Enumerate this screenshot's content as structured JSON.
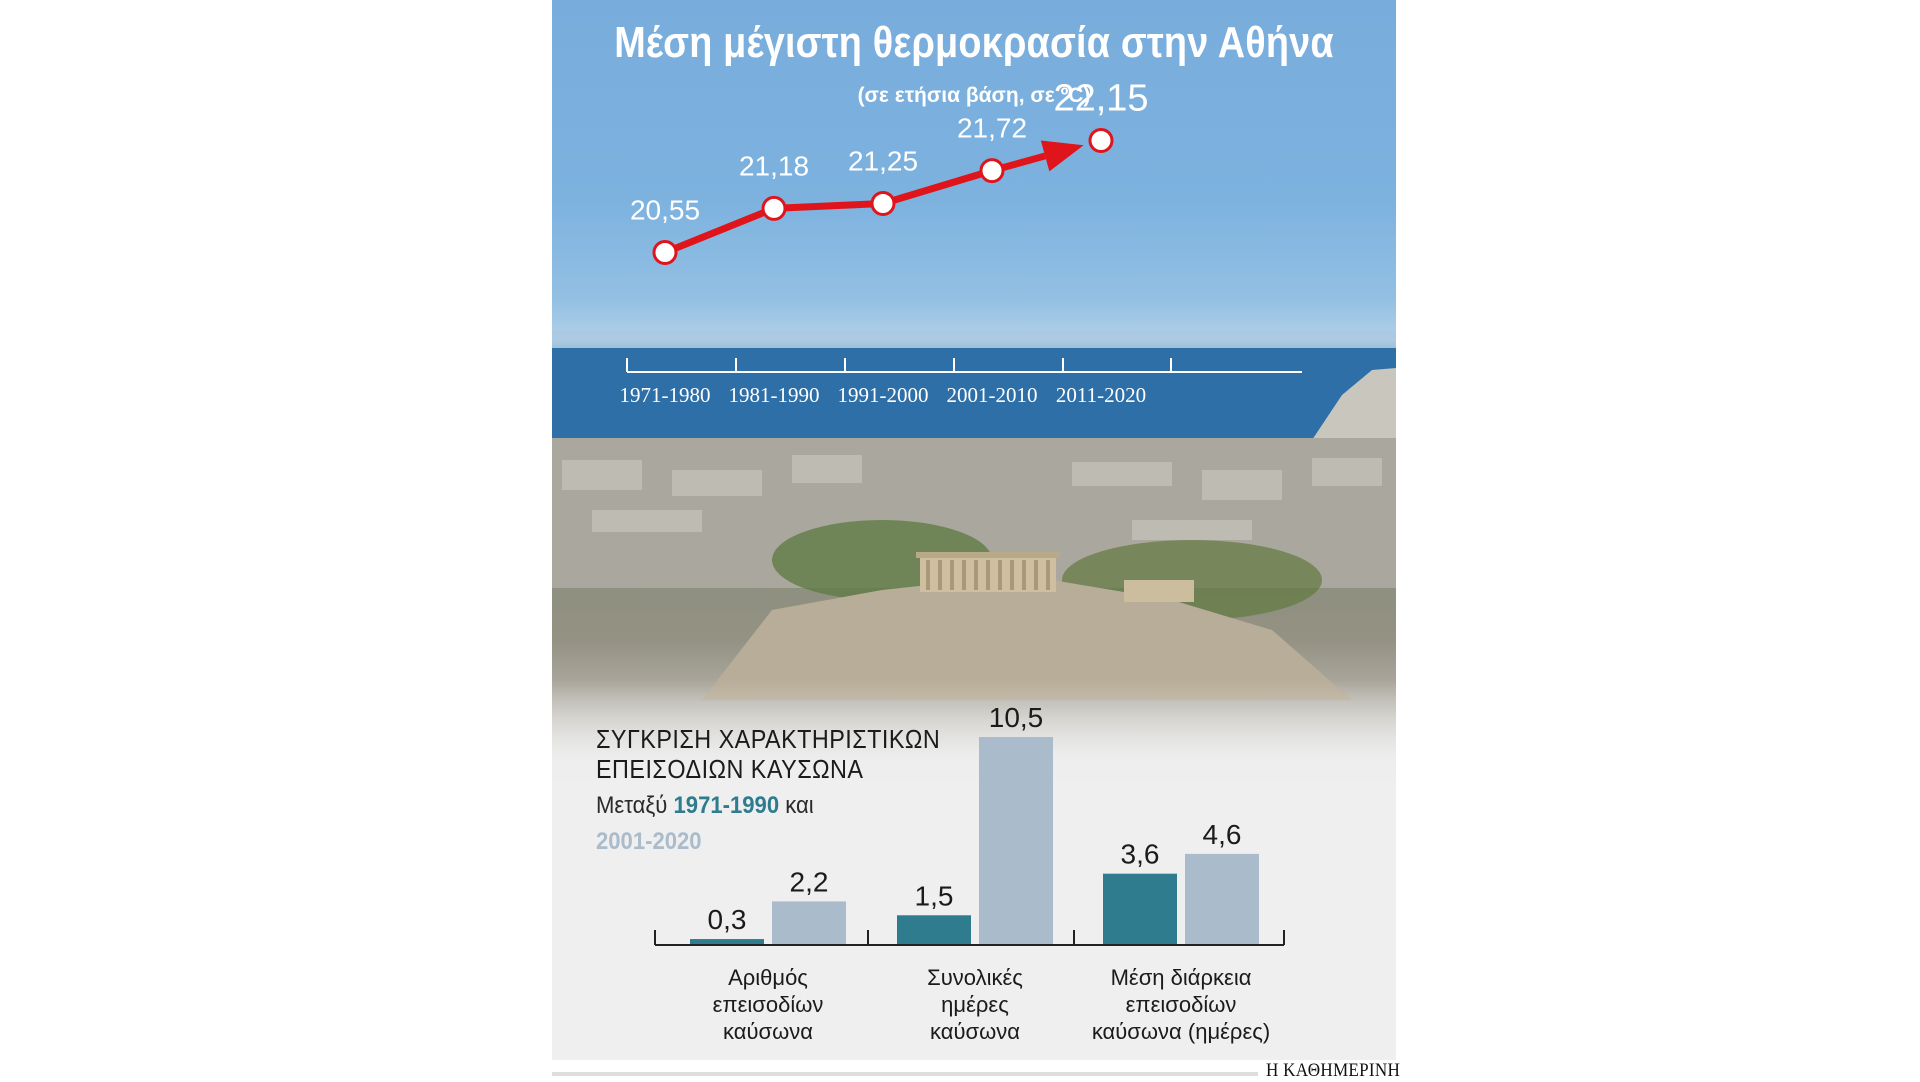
{
  "chart_data": [
    {
      "type": "line",
      "title": "Μέση μέγιστη θερμοκρασία στην Αθήνα",
      "subtitle": "(σε ετήσια βάση, σε ºC)",
      "categories": [
        "1971-1980",
        "1981-1990",
        "1991-2000",
        "2001-2010",
        "2011-2020"
      ],
      "values": [
        20.55,
        21.18,
        21.25,
        21.72,
        22.15
      ],
      "value_labels": [
        "20,55",
        "21,18",
        "21,25",
        "21,72",
        "22,15"
      ],
      "line_color": "#e0151b",
      "ylim": [
        20.3,
        22.3
      ]
    },
    {
      "type": "bar",
      "title": "ΣΥΓΚΡΙΣΗ ΧΑΡΑΚΤΗΡΙΣΤΙΚΩΝ ΕΠΕΙΣΟΔΙΩΝ ΚΑΥΣΩΝΑ",
      "legend_prefix": "Μεταξύ",
      "legend_joiner": "και",
      "categories": [
        "Αριθμός επεισοδίων καύσωνα",
        "Συνολικές ημέρες καύσωνα",
        "Μέση διάρκεια επεισοδίων καύσωνα (ημέρες)"
      ],
      "category_lines": [
        [
          "Αριθμός",
          "επεισοδίων",
          "καύσωνα"
        ],
        [
          "Συνολικές",
          "ημέρες",
          "καύσωνα"
        ],
        [
          "Μέση διάρκεια",
          "επεισοδίων",
          "καύσωνα (ημέρες)"
        ]
      ],
      "series": [
        {
          "name": "1971-1990",
          "values": [
            0.3,
            1.5,
            3.6
          ],
          "labels": [
            "0,3",
            "1,5",
            "3,6"
          ],
          "color": "#2e7c8e"
        },
        {
          "name": "2001-2020",
          "values": [
            2.2,
            10.5,
            4.6
          ],
          "labels": [
            "2,2",
            "10,5",
            "4,6"
          ],
          "color": "#aabccb"
        }
      ],
      "ylim": [
        0,
        10.5
      ]
    }
  ],
  "source": "Η ΚΑΘΗΜΕΡΙΝΗ"
}
